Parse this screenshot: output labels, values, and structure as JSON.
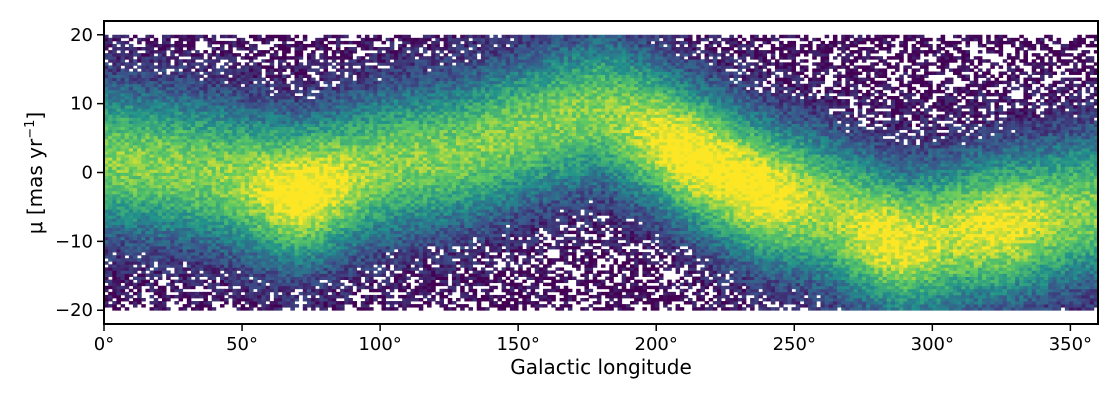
{
  "chart_data": {
    "type": "heatmap",
    "title": "",
    "xlabel": "Galactic longitude",
    "ylabel_main": "μ [mas yr",
    "ylabel_sup": "−1",
    "ylabel_end": "]",
    "xlim": [
      0,
      360
    ],
    "ylim": [
      -22,
      22
    ],
    "data_y_range": [
      -20,
      20
    ],
    "grid": false,
    "colormap": "viridis",
    "x_ticks": [
      0,
      50,
      100,
      150,
      200,
      250,
      300,
      350
    ],
    "x_tick_labels": [
      "0°",
      "50°",
      "100°",
      "150°",
      "200°",
      "250°",
      "300°",
      "350°"
    ],
    "y_ticks": [
      -20,
      -10,
      0,
      10,
      20
    ],
    "y_tick_labels": [
      "−20",
      "−10",
      "0",
      "10",
      "20"
    ],
    "density_ridge": {
      "description_units": "galactic longitude in degrees, proper motion in mas/yr",
      "l": [
        0,
        40,
        70,
        100,
        130,
        160,
        180,
        200,
        210,
        230,
        240,
        260,
        290,
        320,
        360
      ],
      "mu": [
        2,
        0,
        -3,
        1,
        3,
        7,
        9,
        6,
        3,
        -1,
        -3,
        -5,
        -10,
        -8,
        -5
      ]
    },
    "density_peaks": [
      {
        "l": 72,
        "mu": -3,
        "level": 1.0
      },
      {
        "l": 210,
        "mu": 3,
        "level": 0.9
      },
      {
        "l": 238,
        "mu": -3,
        "level": 0.9
      },
      {
        "l": 285,
        "mu": -11,
        "level": 0.75
      },
      {
        "l": 325,
        "mu": -8,
        "level": 0.7
      }
    ],
    "colors": {
      "low": "#440154",
      "mid_low": "#3b528b",
      "mid": "#21918c",
      "mid_high": "#5ec962",
      "high": "#fde725"
    }
  }
}
